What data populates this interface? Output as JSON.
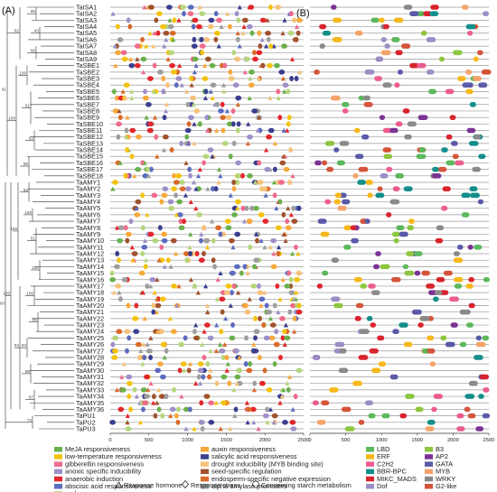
{
  "panel_labels": [
    "(A)",
    "(B)"
  ],
  "genes": [
    "TaISA1",
    "TaISA2",
    "TaISA3",
    "TaISA4",
    "TaISA5",
    "TaISA6",
    "TaISA7",
    "TaISA8",
    "TaISA9",
    "TaSBE1",
    "TaSBE2",
    "TaSBE3",
    "TaSBE4",
    "TaSBE5",
    "TaSBE6",
    "TaSBE7",
    "TaSBE8",
    "TaSBE9",
    "TaSBE10",
    "TaSBE11",
    "TaSBE12",
    "TaSBE13",
    "TaSBE14",
    "TaSBE15",
    "TaSBE16",
    "TaSBE17",
    "TaSBE18",
    "TaAMY1",
    "TaAMY2",
    "TaAMY3",
    "TaAMY4",
    "TaAMY5",
    "TaAMY6",
    "TaAMY7",
    "TaAMY8",
    "TaAMY9",
    "TaAMY10",
    "TaAMY11",
    "TaAMY12",
    "TaAMY13",
    "TaAMY14",
    "TaAMY15",
    "TaAMY16",
    "TaAMY17",
    "TaAMY18",
    "TaAMY19",
    "TaAMY20",
    "TaAMY21",
    "TaAMY22",
    "TaAMY23",
    "TaAMY24",
    "TaAMY25",
    "TaAMY26",
    "TaAMY27",
    "TaAMY28",
    "TaAMY29",
    "TaAMY30",
    "TaAMY31",
    "TaAMY32",
    "TaAMY33",
    "TaAMY34",
    "TaAMY35",
    "TaAMY36",
    "TaPU1",
    "TaPU2",
    "TaPU3"
  ],
  "bootstrap_values": [
    "62",
    "100",
    "100",
    "73",
    "91",
    "100",
    "98",
    "43",
    "58",
    "100",
    "51",
    "93",
    "56",
    "63",
    "100",
    "51",
    "100",
    "100",
    "96",
    "83",
    "85",
    "97",
    "100",
    "84",
    "100",
    "91",
    "86",
    "30",
    "93",
    "61",
    "38",
    "53",
    "60",
    "100",
    "71",
    "77",
    "88",
    "50",
    "70",
    "62",
    "26",
    "17",
    "35",
    "39",
    "100",
    "58",
    "100",
    "100",
    "88",
    "100"
  ],
  "axis": {
    "min": 0,
    "max": 2500,
    "ticks": [
      "0",
      "500",
      "1000",
      "1500",
      "2000",
      "2500"
    ]
  },
  "colors": {
    "meja": "#6ab04c",
    "lowtemp": "#f4c20d",
    "gibberellin": "#ee6b8b",
    "anoxic": "#9e8fc9",
    "anaerobic": "#e3262b",
    "abscisic": "#5c6bc0",
    "endosperm": "#b5d67d",
    "auxin": "#f7a93c",
    "salicylic": "#3b3f8f",
    "drought": "#f5c27a",
    "seed": "#a0522d",
    "endo_neg": "#d96a2b",
    "alpha": "#9e9e9e",
    "lbd": "#5cb85c",
    "erf": "#f6b81a",
    "c2h2": "#ec5c8f",
    "bbr": "#138e8b",
    "mikc": "#d9232d",
    "dof": "#9b8ec4",
    "b3": "#8ec63f",
    "ap2": "#7b3294",
    "gata": "#5a5aa8",
    "myb": "#f5a36a",
    "wrky": "#8a8a8a",
    "g2like": "#d4553a"
  },
  "legend_a": [
    {
      "label": "MeJA responsiveness",
      "color": "#6ab04c",
      "shape": "rect"
    },
    {
      "label": "low-temperature responsiveness",
      "color": "#f4c20d",
      "shape": "rect"
    },
    {
      "label": "gibberellin responsiveness",
      "color": "#ee6b8b",
      "shape": "rect"
    },
    {
      "label": "anoxic specific inducibility",
      "color": "#9e8fc9",
      "shape": "rect"
    },
    {
      "label": "anaerobic induction",
      "color": "#e3262b",
      "shape": "rect"
    },
    {
      "label": "abscisic acid responsiveness",
      "color": "#5c6bc0",
      "shape": "rect"
    },
    {
      "label": "endosperm expression",
      "color": "#b5d67d",
      "shape": "rect"
    },
    {
      "label": "auxin responsiveness",
      "color": "#f7a93c",
      "shape": "rect"
    },
    {
      "label": "salicylic acid responsiveness",
      "color": "#3b3f8f",
      "shape": "rect"
    },
    {
      "label": "drought inducibility (MYB binding site)",
      "color": "#f5c27a",
      "shape": "rect"
    },
    {
      "label": "seed-specific regulation",
      "color": "#a0522d",
      "shape": "rect"
    },
    {
      "label": "endosperm-specific negative expression",
      "color": "#d96a2b",
      "shape": "rect"
    },
    {
      "label": "alpha-amylase promoters",
      "color": "#9e9e9e",
      "shape": "rect"
    }
  ],
  "legend_b": [
    {
      "label": "LBD",
      "color": "#5cb85c"
    },
    {
      "label": "ERF",
      "color": "#f6b81a"
    },
    {
      "label": "C2H2",
      "color": "#ec5c8f"
    },
    {
      "label": "BBR-BPC",
      "color": "#138e8b"
    },
    {
      "label": "MIKC_MADS",
      "color": "#d9232d"
    },
    {
      "label": "Dof",
      "color": "#9b8ec4"
    },
    {
      "label": "B3",
      "color": "#8ec63f"
    },
    {
      "label": "AP2",
      "color": "#7b3294"
    },
    {
      "label": "GATA",
      "color": "#5a5aa8"
    },
    {
      "label": "MYB",
      "color": "#f5a36a"
    },
    {
      "label": "WRKY",
      "color": "#8a8a8a"
    },
    {
      "label": "G2-like",
      "color": "#d4553a"
    }
  ],
  "notes": [
    "Response hormone",
    "Response stress",
    "Concerning starch metabolism"
  ],
  "icons": {
    "hormone": "triangle-outline-icon",
    "stress": "diamond-outline-icon",
    "starch": "circle-outline-icon"
  }
}
